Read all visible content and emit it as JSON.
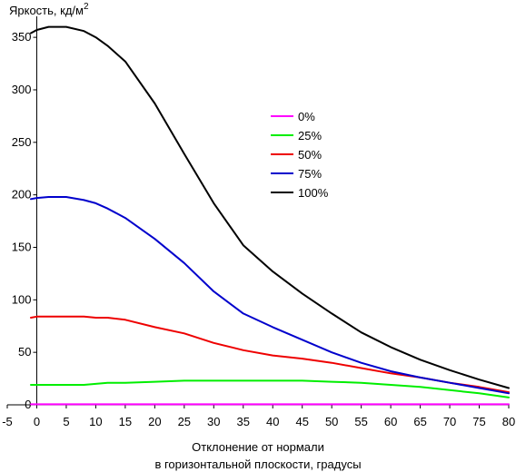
{
  "chart_data": {
    "type": "line",
    "ylabel": "Яркость, кд/м",
    "ylabel_sup": "2",
    "xlabel_line1": "Отклонение от нормали",
    "xlabel_line2": "в горизонтальной плоскости, градусы",
    "xlim": [
      -5,
      80
    ],
    "ylim": [
      0,
      370
    ],
    "xticks": [
      -5,
      0,
      5,
      10,
      15,
      20,
      25,
      30,
      35,
      40,
      45,
      50,
      55,
      60,
      65,
      70,
      75,
      80
    ],
    "yticks": [
      0,
      50,
      100,
      150,
      200,
      250,
      300,
      350
    ],
    "grid": false,
    "legend_position": "center",
    "x": [
      -1,
      0,
      2,
      5,
      8,
      10,
      12,
      15,
      20,
      25,
      30,
      35,
      40,
      45,
      50,
      55,
      60,
      65,
      70,
      75,
      80
    ],
    "series": [
      {
        "name": "0%",
        "color": "#ff00ff",
        "values": [
          0.5,
          0.5,
          0.5,
          0.5,
          0.5,
          0.5,
          0.5,
          0.5,
          0.5,
          0.5,
          0.5,
          0.5,
          0.5,
          0.5,
          0.5,
          0.5,
          0.5,
          0.5,
          0.5,
          0.5,
          0.5
        ]
      },
      {
        "name": "25%",
        "color": "#00ee00",
        "values": [
          19,
          19,
          19,
          19,
          19,
          20,
          21,
          21,
          22,
          23,
          23,
          23,
          23,
          23,
          22,
          21,
          19,
          17,
          14,
          11,
          7
        ]
      },
      {
        "name": "50%",
        "color": "#ee0000",
        "values": [
          83,
          84,
          84,
          84,
          84,
          83,
          83,
          81,
          74,
          68,
          59,
          52,
          47,
          44,
          40,
          35,
          30,
          26,
          21,
          17,
          12
        ]
      },
      {
        "name": "75%",
        "color": "#0000cc",
        "values": [
          196,
          197,
          198,
          198,
          195,
          192,
          187,
          178,
          158,
          135,
          108,
          87,
          74,
          62,
          50,
          40,
          32,
          26,
          21,
          16,
          11
        ]
      },
      {
        "name": "100%",
        "color": "#000000",
        "values": [
          354,
          357,
          360,
          360,
          356,
          350,
          342,
          327,
          287,
          239,
          192,
          152,
          127,
          106,
          87,
          69,
          55,
          43,
          33,
          24,
          16
        ]
      }
    ]
  }
}
